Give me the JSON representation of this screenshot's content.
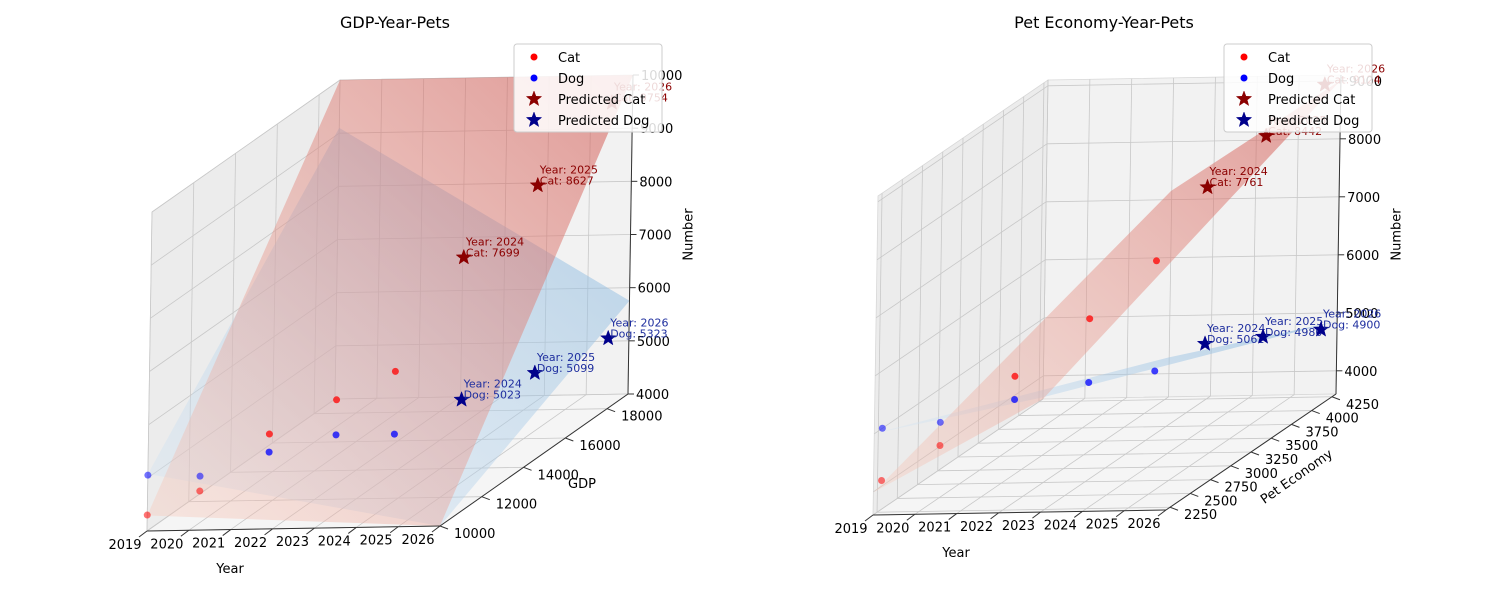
{
  "chart_data": [
    {
      "type": "scatter3d",
      "title": "GDP-Year-Pets",
      "xlabel": "Year",
      "ylabel": "GDP",
      "zlabel": "Number",
      "xlim": [
        2019,
        2026
      ],
      "ylim": [
        10000,
        19000
      ],
      "zlim": [
        4000,
        10000
      ],
      "xticks": [
        "2019",
        "2020",
        "2021",
        "2022",
        "2023",
        "2024",
        "2025",
        "2026"
      ],
      "yticks": [
        "10000",
        "12000",
        "14000",
        "16000",
        "18000"
      ],
      "zticks": [
        "4000",
        "5000",
        "6000",
        "7000",
        "8000",
        "9000",
        "10000"
      ],
      "grid": true,
      "legend": "top-right",
      "series": [
        {
          "name": "Cat",
          "kind": "observed",
          "color": "#ff0000",
          "points": [
            {
              "x": 2019,
              "y": 10000,
              "z": 4300
            },
            {
              "x": 2020,
              "y": 10500,
              "z": 4600
            },
            {
              "x": 2021,
              "y": 11800,
              "z": 5300
            },
            {
              "x": 2022,
              "y": 13000,
              "z": 5600
            },
            {
              "x": 2023,
              "y": 13800,
              "z": 5900
            }
          ]
        },
        {
          "name": "Dog",
          "kind": "observed",
          "color": "#0000ff",
          "points": [
            {
              "x": 2019,
              "y": 10000,
              "z": 5050
            },
            {
              "x": 2020,
              "y": 10500,
              "z": 4880
            },
            {
              "x": 2021,
              "y": 11800,
              "z": 4960
            },
            {
              "x": 2022,
              "y": 13000,
              "z": 4940
            },
            {
              "x": 2023,
              "y": 13800,
              "z": 4720
            }
          ]
        },
        {
          "name": "Predicted Cat",
          "kind": "predicted",
          "color": "#8b0000",
          "points": [
            {
              "x": 2024,
              "y": 15000,
              "z": 7699
            },
            {
              "x": 2025,
              "y": 16500,
              "z": 8627
            },
            {
              "x": 2026,
              "y": 18000,
              "z": 9754
            }
          ],
          "labels": [
            [
              "Year: 2024",
              "Cat: 7699"
            ],
            [
              "Year: 2025",
              "Cat: 8627"
            ],
            [
              "Year: 2026",
              "Cat: 9754"
            ]
          ]
        },
        {
          "name": "Predicted Dog",
          "kind": "predicted",
          "color": "#00008b",
          "points": [
            {
              "x": 2024,
              "y": 15000,
              "z": 5023
            },
            {
              "x": 2025,
              "y": 16500,
              "z": 5099
            },
            {
              "x": 2026,
              "y": 18000,
              "z": 5323
            }
          ],
          "labels": [
            [
              "Year: 2024",
              "Dog: 5023"
            ],
            [
              "Year: 2025",
              "Dog: 5099"
            ],
            [
              "Year: 2026",
              "Dog: 5323"
            ]
          ]
        }
      ]
    },
    {
      "type": "scatter3d",
      "title": "Pet Economy-Year-Pets",
      "xlabel": "Year",
      "ylabel": "Pet Economy",
      "zlabel": "Number",
      "xlim": [
        2019,
        2026
      ],
      "ylim": [
        2200,
        4300
      ],
      "zlim": [
        3600,
        9100
      ],
      "xticks": [
        "2019",
        "2020",
        "2021",
        "2022",
        "2023",
        "2024",
        "2025",
        "2026"
      ],
      "yticks": [
        "2250",
        "2500",
        "2750",
        "3000",
        "3250",
        "3500",
        "3750",
        "4000",
        "4250"
      ],
      "zticks": [
        "4000",
        "5000",
        "6000",
        "7000",
        "8000",
        "9000"
      ],
      "grid": true,
      "legend": "top-right",
      "series": [
        {
          "name": "Cat",
          "kind": "observed",
          "color": "#ff0000",
          "points": [
            {
              "x": 2019,
              "y": 2300,
              "z": 4100
            },
            {
              "x": 2020,
              "y": 2500,
              "z": 4500
            },
            {
              "x": 2021,
              "y": 2900,
              "z": 5300
            },
            {
              "x": 2022,
              "y": 3300,
              "z": 5900
            },
            {
              "x": 2023,
              "y": 3600,
              "z": 6600
            }
          ]
        },
        {
          "name": "Dog",
          "kind": "observed",
          "color": "#0000ff",
          "points": [
            {
              "x": 2019,
              "y": 2300,
              "z": 5000
            },
            {
              "x": 2020,
              "y": 2500,
              "z": 4900
            },
            {
              "x": 2021,
              "y": 2900,
              "z": 4900
            },
            {
              "x": 2022,
              "y": 3300,
              "z": 4800
            },
            {
              "x": 2023,
              "y": 3600,
              "z": 4700
            }
          ]
        },
        {
          "name": "Predicted Cat",
          "kind": "predicted",
          "color": "#8b0000",
          "points": [
            {
              "x": 2024,
              "y": 3700,
              "z": 7761
            },
            {
              "x": 2025,
              "y": 3900,
              "z": 8442
            },
            {
              "x": 2026,
              "y": 4100,
              "z": 9124
            }
          ],
          "labels": [
            [
              "Year: 2024",
              "Cat: 7761"
            ],
            [
              "Year: 2025",
              "Cat: 8442"
            ],
            [
              "Year: 2026",
              "Cat: 9124"
            ]
          ]
        },
        {
          "name": "Predicted Dog",
          "kind": "predicted",
          "color": "#00008b",
          "points": [
            {
              "x": 2024,
              "y": 3700,
              "z": 5061
            },
            {
              "x": 2025,
              "y": 3900,
              "z": 4980
            },
            {
              "x": 2026,
              "y": 4100,
              "z": 4900
            }
          ],
          "labels": [
            [
              "Year: 2024",
              "Dog: 5061"
            ],
            [
              "Year: 2025",
              "Dog: 4980"
            ],
            [
              "Year: 2026",
              "Dog: 4900"
            ]
          ]
        }
      ]
    }
  ]
}
